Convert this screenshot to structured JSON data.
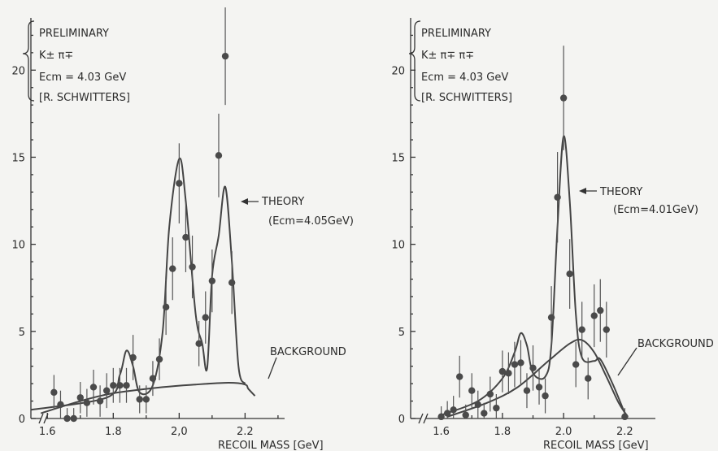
{
  "chart_data": [
    {
      "type": "scatter",
      "xlabel": "RECOIL MASS [GeV]",
      "xlim": [
        1.55,
        2.32
      ],
      "ylim": [
        0,
        23
      ],
      "xticks": [
        1.6,
        1.8,
        2.0,
        2.2
      ],
      "xtick_labels": [
        "1.6",
        "1.8",
        "2,0",
        "2.2"
      ],
      "yticks": [
        0,
        5,
        10,
        15,
        20
      ],
      "ytick_labels": [
        "0",
        "5",
        "10",
        "15",
        "20"
      ],
      "annotation": {
        "preliminary": "PRELIMINARY",
        "channel": "K± π∓",
        "ecm": "Ecm = 4.03 GeV",
        "author": "[R. SCHWITTERS]"
      },
      "theory_label": "THEORY",
      "theory_ecm": "(Ecm=4.05GeV)",
      "background_label": "BACKGROUND",
      "points": [
        {
          "x": 1.62,
          "y": 1.5,
          "err": 1.0
        },
        {
          "x": 1.64,
          "y": 0.8,
          "err": 0.8
        },
        {
          "x": 1.66,
          "y": 0.0,
          "err": 0.6
        },
        {
          "x": 1.68,
          "y": 0.0,
          "err": 0.6
        },
        {
          "x": 1.7,
          "y": 1.2,
          "err": 0.9
        },
        {
          "x": 1.72,
          "y": 0.9,
          "err": 0.8
        },
        {
          "x": 1.74,
          "y": 1.8,
          "err": 1.0
        },
        {
          "x": 1.76,
          "y": 1.0,
          "err": 0.9
        },
        {
          "x": 1.78,
          "y": 1.6,
          "err": 1.0
        },
        {
          "x": 1.8,
          "y": 1.9,
          "err": 1.0
        },
        {
          "x": 1.82,
          "y": 1.9,
          "err": 1.0
        },
        {
          "x": 1.84,
          "y": 1.9,
          "err": 1.0
        },
        {
          "x": 1.86,
          "y": 3.5,
          "err": 1.3
        },
        {
          "x": 1.88,
          "y": 1.1,
          "err": 0.8
        },
        {
          "x": 1.9,
          "y": 1.1,
          "err": 0.8
        },
        {
          "x": 1.92,
          "y": 2.3,
          "err": 1.0
        },
        {
          "x": 1.94,
          "y": 3.4,
          "err": 1.2
        },
        {
          "x": 1.96,
          "y": 6.4,
          "err": 1.6
        },
        {
          "x": 1.98,
          "y": 8.6,
          "err": 1.8
        },
        {
          "x": 2.0,
          "y": 13.5,
          "err": 2.3
        },
        {
          "x": 2.02,
          "y": 10.4,
          "err": 2.0
        },
        {
          "x": 2.04,
          "y": 8.7,
          "err": 1.8
        },
        {
          "x": 2.06,
          "y": 4.3,
          "err": 1.3
        },
        {
          "x": 2.08,
          "y": 5.8,
          "err": 1.5
        },
        {
          "x": 2.1,
          "y": 7.9,
          "err": 1.8
        },
        {
          "x": 2.12,
          "y": 15.1,
          "err": 2.4
        },
        {
          "x": 2.14,
          "y": 20.8,
          "err": 2.8
        },
        {
          "x": 2.16,
          "y": 7.8,
          "err": 1.8
        }
      ],
      "theory": [
        [
          1.55,
          0.5
        ],
        [
          1.78,
          1.2
        ],
        [
          1.82,
          2.5
        ],
        [
          1.84,
          3.9
        ],
        [
          1.86,
          3.0
        ],
        [
          1.88,
          1.5
        ],
        [
          1.92,
          1.9
        ],
        [
          1.95,
          5.0
        ],
        [
          1.97,
          11.0
        ],
        [
          2.0,
          14.9
        ],
        [
          2.02,
          12.5
        ],
        [
          2.05,
          6.0
        ],
        [
          2.07,
          4.3
        ],
        [
          2.085,
          2.9
        ],
        [
          2.1,
          8.2
        ],
        [
          2.12,
          10.5
        ],
        [
          2.14,
          13.3
        ],
        [
          2.16,
          9.0
        ],
        [
          2.18,
          3.0
        ],
        [
          2.2,
          2.0
        ]
      ],
      "background": [
        [
          1.58,
          0.3
        ],
        [
          1.7,
          1.0
        ],
        [
          1.8,
          1.45
        ],
        [
          1.95,
          1.8
        ],
        [
          2.05,
          1.95
        ],
        [
          2.15,
          2.05
        ],
        [
          2.2,
          1.95
        ],
        [
          2.21,
          1.7
        ],
        [
          2.23,
          1.3
        ]
      ]
    },
    {
      "type": "scatter",
      "xlabel": "RECOIL MASS [GeV]",
      "xlim": [
        1.5,
        2.3
      ],
      "ylim": [
        0,
        23
      ],
      "xticks": [
        1.6,
        1.8,
        2.0,
        2.2
      ],
      "xtick_labels": [
        "1.6",
        "1.8",
        "2.0",
        "2.2"
      ],
      "yticks": [
        0,
        5,
        10,
        15,
        20
      ],
      "ytick_labels": [
        "0",
        "5",
        "10",
        "15",
        "20"
      ],
      "annotation": {
        "preliminary": "PRELIMINARY",
        "channel": "K± π∓ π∓",
        "ecm": "Ecm = 4.03 GeV",
        "author": "[R. SCHWITTERS]"
      },
      "theory_label": "THEORY",
      "theory_ecm": "(Ecm=4.01GeV)",
      "background_label": "BACKGROUND",
      "points": [
        {
          "x": 1.6,
          "y": 0.1,
          "err": 0.6
        },
        {
          "x": 1.62,
          "y": 0.3,
          "err": 0.7
        },
        {
          "x": 1.64,
          "y": 0.5,
          "err": 0.8
        },
        {
          "x": 1.66,
          "y": 2.4,
          "err": 1.2
        },
        {
          "x": 1.68,
          "y": 0.2,
          "err": 0.6
        },
        {
          "x": 1.7,
          "y": 1.6,
          "err": 1.0
        },
        {
          "x": 1.72,
          "y": 0.8,
          "err": 0.8
        },
        {
          "x": 1.74,
          "y": 0.3,
          "err": 0.6
        },
        {
          "x": 1.76,
          "y": 1.4,
          "err": 1.0
        },
        {
          "x": 1.78,
          "y": 0.6,
          "err": 0.8
        },
        {
          "x": 1.8,
          "y": 2.7,
          "err": 1.2
        },
        {
          "x": 1.82,
          "y": 2.6,
          "err": 1.2
        },
        {
          "x": 1.84,
          "y": 3.1,
          "err": 1.3
        },
        {
          "x": 1.86,
          "y": 3.2,
          "err": 1.3
        },
        {
          "x": 1.88,
          "y": 1.6,
          "err": 1.0
        },
        {
          "x": 1.9,
          "y": 2.9,
          "err": 1.3
        },
        {
          "x": 1.92,
          "y": 1.8,
          "err": 1.0
        },
        {
          "x": 1.94,
          "y": 1.3,
          "err": 1.0
        },
        {
          "x": 1.96,
          "y": 5.8,
          "err": 1.8
        },
        {
          "x": 1.98,
          "y": 12.7,
          "err": 2.6
        },
        {
          "x": 2.0,
          "y": 18.4,
          "err": 3.0
        },
        {
          "x": 2.02,
          "y": 8.3,
          "err": 2.0
        },
        {
          "x": 2.04,
          "y": 3.1,
          "err": 1.3
        },
        {
          "x": 2.06,
          "y": 5.1,
          "err": 1.6
        },
        {
          "x": 2.08,
          "y": 2.3,
          "err": 1.2
        },
        {
          "x": 2.1,
          "y": 5.9,
          "err": 1.8
        },
        {
          "x": 2.12,
          "y": 6.2,
          "err": 1.8
        },
        {
          "x": 2.14,
          "y": 5.1,
          "err": 1.6
        },
        {
          "x": 2.2,
          "y": 0.1,
          "err": 0.5
        }
      ],
      "theory": [
        [
          1.6,
          0.2
        ],
        [
          1.72,
          1.0
        ],
        [
          1.8,
          2.3
        ],
        [
          1.84,
          3.8
        ],
        [
          1.86,
          4.9
        ],
        [
          1.88,
          4.2
        ],
        [
          1.9,
          2.6
        ],
        [
          1.94,
          2.4
        ],
        [
          1.96,
          4.2
        ],
        [
          1.98,
          11.0
        ],
        [
          2.0,
          16.2
        ],
        [
          2.02,
          12.5
        ],
        [
          2.04,
          6.0
        ],
        [
          2.06,
          3.5
        ],
        [
          2.1,
          3.3
        ],
        [
          2.12,
          3.4
        ],
        [
          2.16,
          2.0
        ],
        [
          2.2,
          0.3
        ]
      ],
      "background": [
        [
          1.62,
          0.1
        ],
        [
          1.75,
          0.9
        ],
        [
          1.85,
          1.8
        ],
        [
          1.95,
          3.3
        ],
        [
          2.02,
          4.3
        ],
        [
          2.06,
          4.5
        ],
        [
          2.1,
          3.8
        ],
        [
          2.14,
          2.4
        ],
        [
          2.18,
          0.9
        ],
        [
          2.21,
          0.1
        ]
      ]
    }
  ]
}
